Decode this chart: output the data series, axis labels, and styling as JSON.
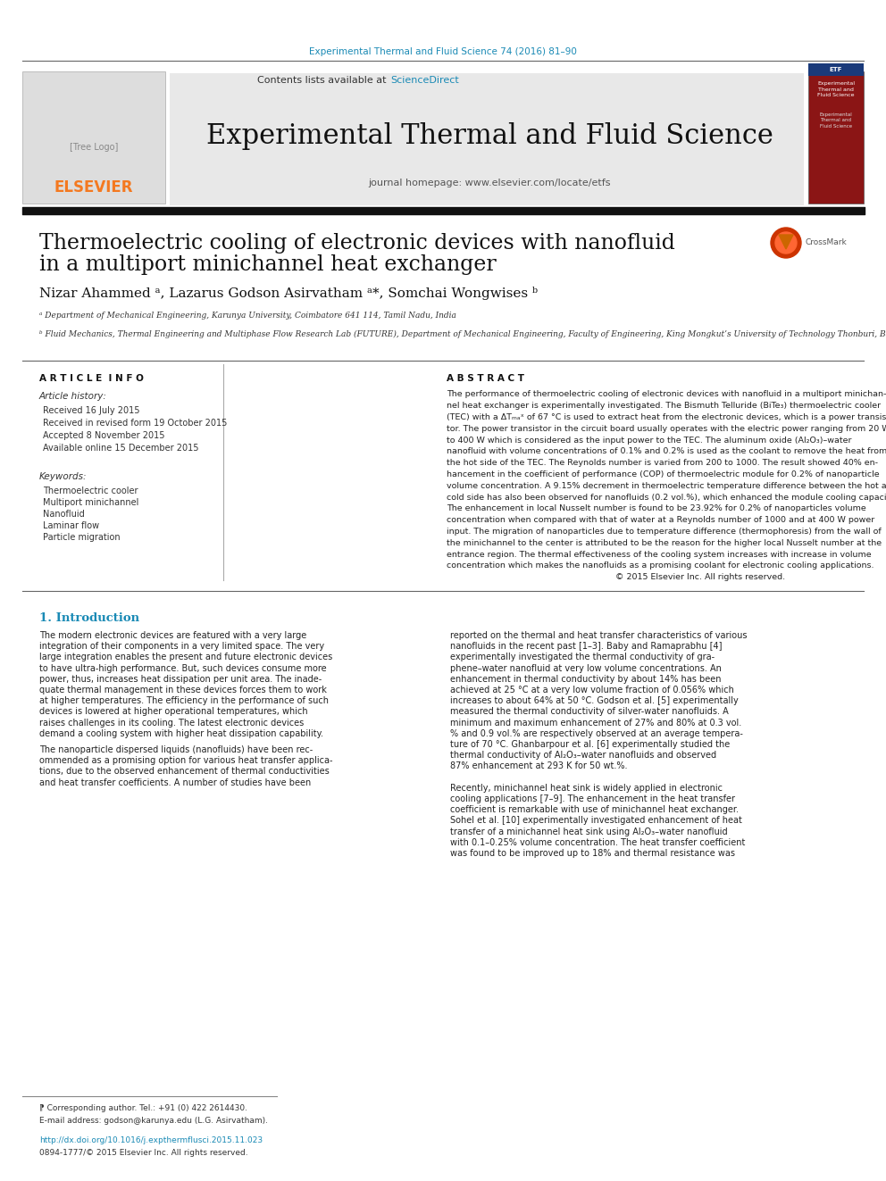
{
  "journal_ref": "Experimental Thermal and Fluid Science 74 (2016) 81–90",
  "journal_ref_color": "#1a8ab5",
  "journal_name": "Experimental Thermal and Fluid Science",
  "journal_name_fontsize": 22,
  "contents_text": "Contents lists available at ",
  "sciencedirect_text": "ScienceDirect",
  "sciencedirect_color": "#1a8ab5",
  "homepage_text": "journal homepage: www.elsevier.com/locate/etfs",
  "header_bg": "#e8e8e8",
  "paper_title_line1": "Thermoelectric cooling of electronic devices with nanofluid",
  "paper_title_line2": "in a multiport minichannel heat exchanger",
  "paper_title_fontsize": 17,
  "authors": "Nizar Ahammed ᵃ, Lazarus Godson Asirvatham ᵃ*, Somchai Wongwises ᵇ",
  "affil_a": "ᵃ Department of Mechanical Engineering, Karunya University, Coimbatore 641 114, Tamil Nadu, India",
  "affil_b": "ᵇ Fluid Mechanics, Thermal Engineering and Multiphase Flow Research Lab (FUTURE), Department of Mechanical Engineering, Faculty of Engineering, King Mongkut’s University of Technology Thonburi, Bangmod, Bangkok, Thailand",
  "article_info_title": "A R T I C L E  I N F O",
  "article_history_title": "Article history:",
  "received_text": "Received 16 July 2015",
  "revised_text": "Received in revised form 19 October 2015",
  "accepted_text": "Accepted 8 November 2015",
  "online_text": "Available online 15 December 2015",
  "keywords_title": "Keywords:",
  "keywords": [
    "Thermoelectric cooler",
    "Multiport minichannel",
    "Nanofluid",
    "Laminar flow",
    "Particle migration"
  ],
  "abstract_title": "A B S T R A C T",
  "intro_title": "1. Introduction",
  "footnote_corr": "⁋ Corresponding author. Tel.: +91 (0) 422 2614430.",
  "footnote_email": "E-mail address: godson@karunya.edu (L.G. Asirvatham).",
  "doi_text": "http://dx.doi.org/10.1016/j.expthermflusci.2015.11.023",
  "doi_color": "#1a8ab5",
  "copyright_text": "0894-1777/© 2015 Elsevier Inc. All rights reserved.",
  "elsevier_color": "#f47920",
  "bg_color": "#ffffff",
  "text_color": "#000000"
}
